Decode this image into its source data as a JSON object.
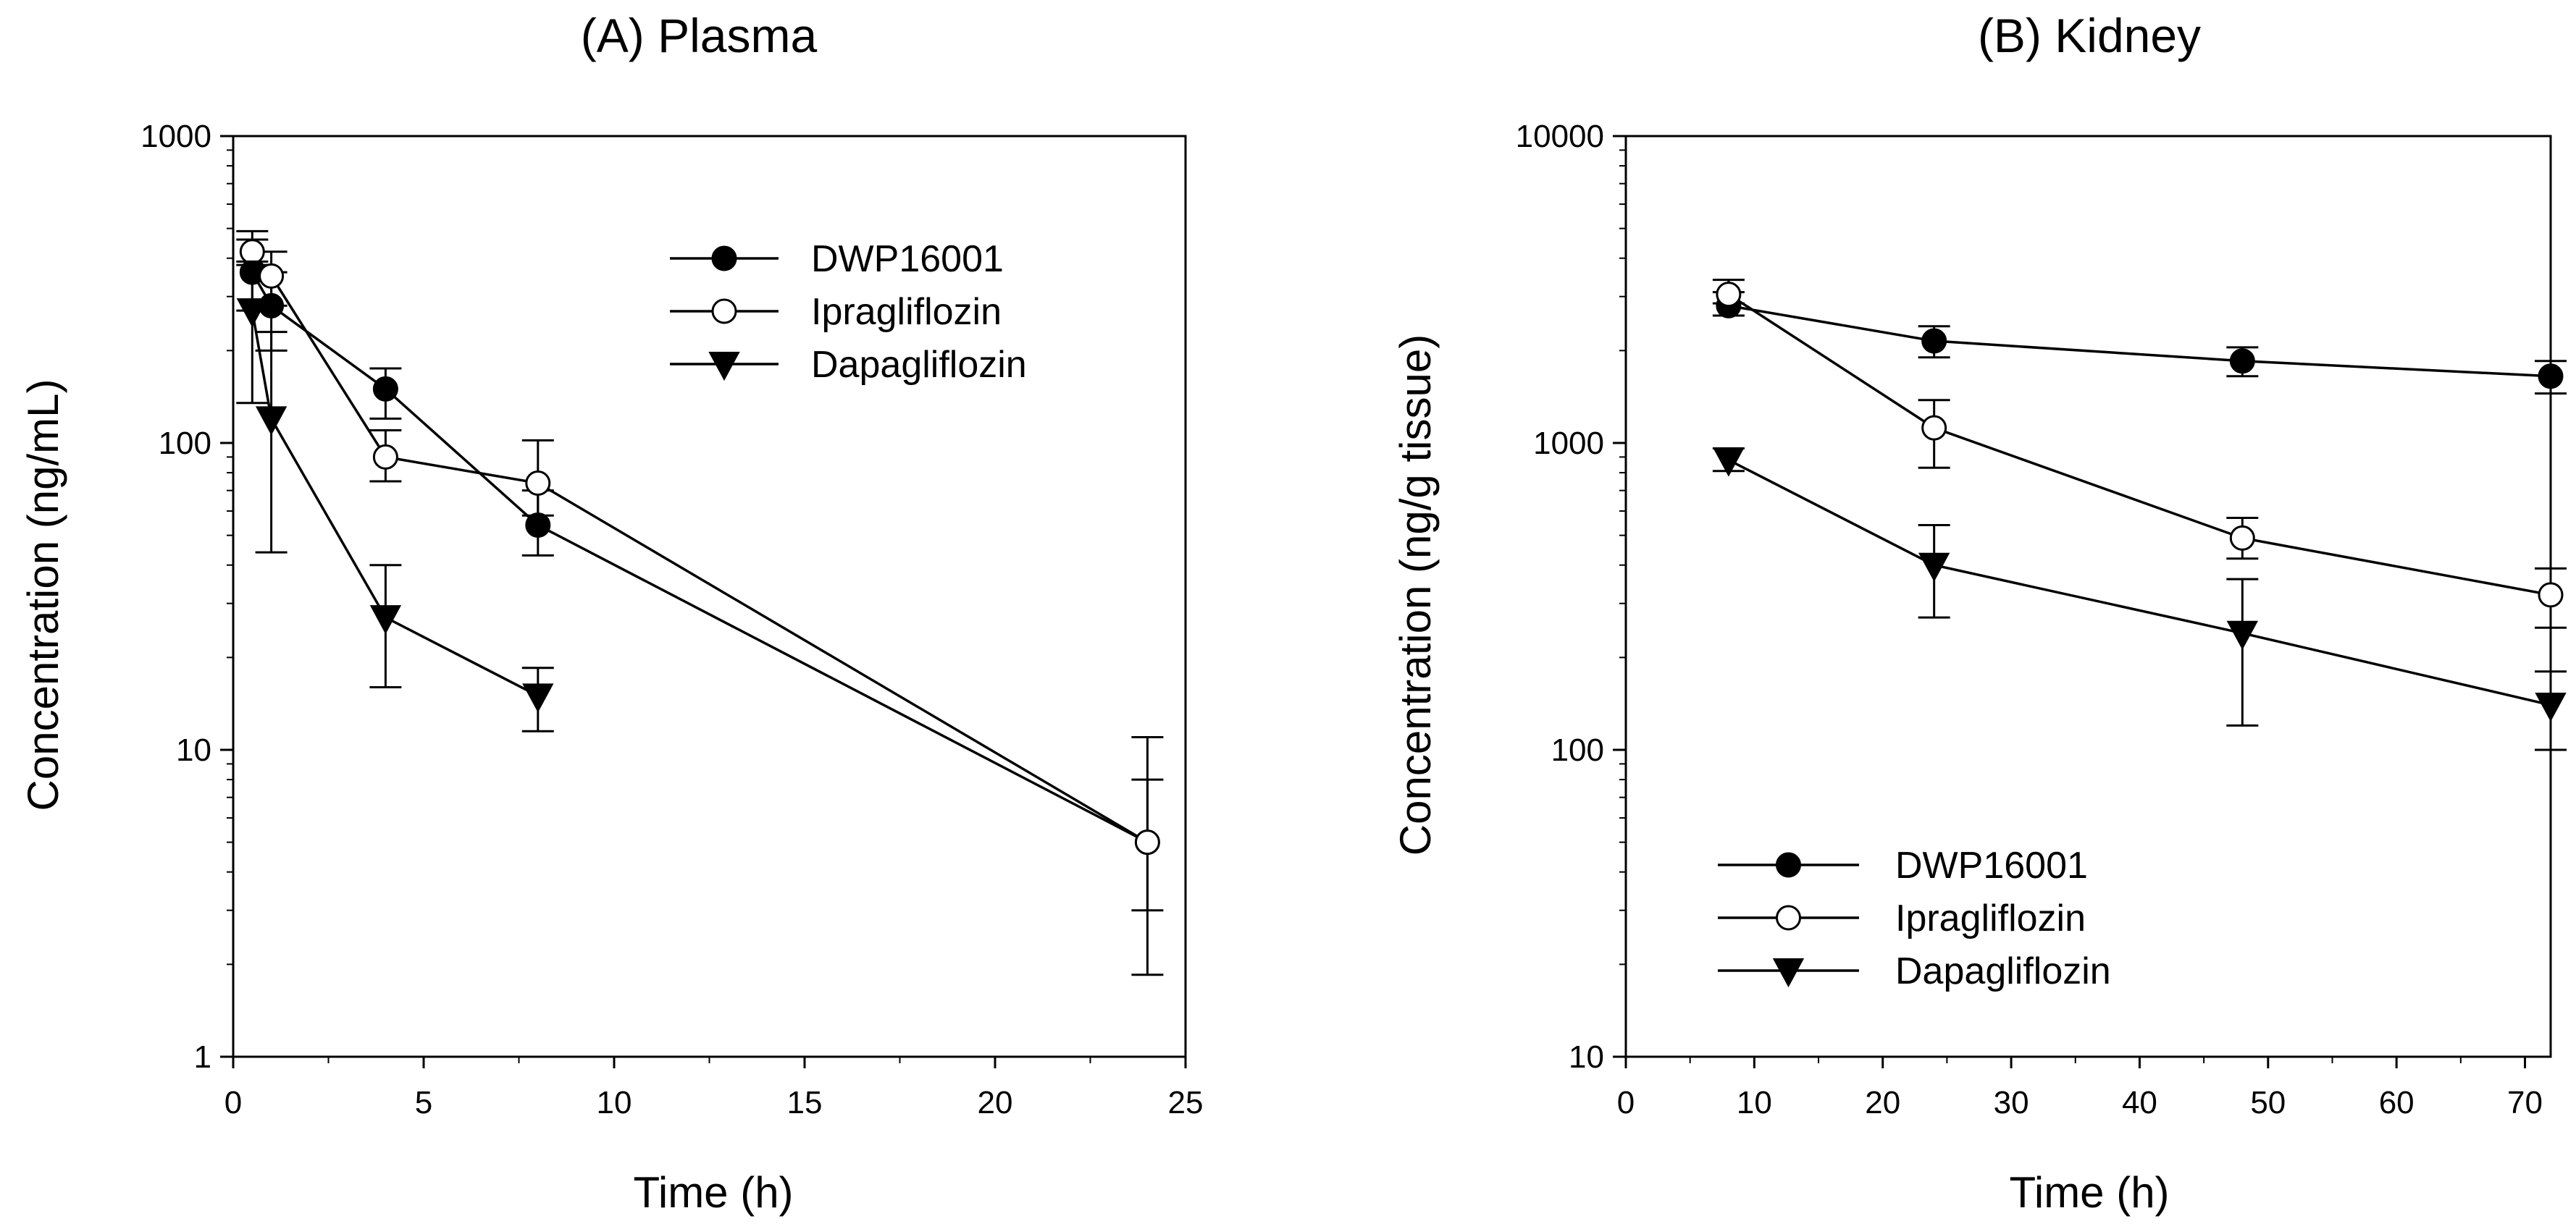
{
  "chart_data": [
    {
      "type": "line",
      "title": "(A) Plasma",
      "xlabel": "Time (h)",
      "ylabel": "Concentration (ng/mL)",
      "yscale": "log",
      "xlim": [
        0,
        25
      ],
      "ylim": [
        1,
        1000
      ],
      "xticks": [
        0,
        5,
        10,
        15,
        20,
        25
      ],
      "xtick_labels": [
        "0",
        "5",
        "10",
        "15",
        "20",
        "25"
      ],
      "yticks": [
        1,
        10,
        100,
        1000
      ],
      "ytick_labels": [
        "1",
        "10",
        "100",
        "1000"
      ],
      "legend_position": "top-right",
      "series": [
        {
          "name": "DWP16001",
          "marker": "filled-circle",
          "x": [
            0.5,
            1,
            4,
            8,
            24
          ],
          "y": [
            360,
            280,
            150,
            54,
            5
          ],
          "err_upper": [
            460,
            360,
            175,
            70,
            11
          ],
          "err_lower": [
            270,
            200,
            120,
            43,
            1.85
          ]
        },
        {
          "name": "Ipragliflozin",
          "marker": "open-circle",
          "x": [
            0.5,
            1,
            4,
            8,
            24
          ],
          "y": [
            420,
            350,
            90,
            74,
            5
          ],
          "err_upper": [
            490,
            420,
            110,
            102,
            8
          ],
          "err_lower": [
            380,
            280,
            75,
            58,
            3
          ]
        },
        {
          "name": "Dapagliflozin",
          "marker": "filled-triangle-down",
          "x": [
            0.5,
            1,
            4,
            8
          ],
          "y": [
            270,
            120,
            27,
            15
          ],
          "err_upper": [
            390,
            230,
            40,
            18.5
          ],
          "err_lower": [
            135,
            44,
            16,
            11.5
          ]
        }
      ]
    },
    {
      "type": "line",
      "title": "(B) Kidney",
      "xlabel": "Time (h)",
      "ylabel": "Concentration (ng/g tissue)",
      "yscale": "log",
      "xlim": [
        0,
        72
      ],
      "ylim": [
        10,
        10000
      ],
      "xticks": [
        0,
        10,
        20,
        30,
        40,
        50,
        60,
        70
      ],
      "xtick_labels": [
        "0",
        "10",
        "20",
        "30",
        "40",
        "50",
        "60",
        "70"
      ],
      "yticks": [
        10,
        100,
        1000,
        10000
      ],
      "ytick_labels": [
        "10",
        "100",
        "1000",
        "10000"
      ],
      "legend_position": "bottom-left",
      "series": [
        {
          "name": "DWP16001",
          "marker": "filled-circle",
          "x": [
            8,
            24,
            48,
            72
          ],
          "y": [
            2800,
            2150,
            1850,
            1650
          ],
          "err_upper": [
            3100,
            2400,
            2050,
            1850
          ],
          "err_lower": [
            2600,
            1900,
            1650,
            1450
          ]
        },
        {
          "name": "Ipragliflozin",
          "marker": "open-circle",
          "x": [
            8,
            24,
            48,
            72
          ],
          "y": [
            3050,
            1120,
            490,
            320
          ],
          "err_upper": [
            3400,
            1380,
            570,
            390
          ],
          "err_lower": [
            2850,
            830,
            420,
            250
          ]
        },
        {
          "name": "Dapagliflozin",
          "marker": "filled-triangle-down",
          "x": [
            8,
            24,
            48,
            72
          ],
          "y": [
            880,
            400,
            240,
            140
          ],
          "err_upper": [
            960,
            540,
            360,
            180
          ],
          "err_lower": [
            810,
            270,
            120,
            100
          ]
        }
      ]
    }
  ]
}
